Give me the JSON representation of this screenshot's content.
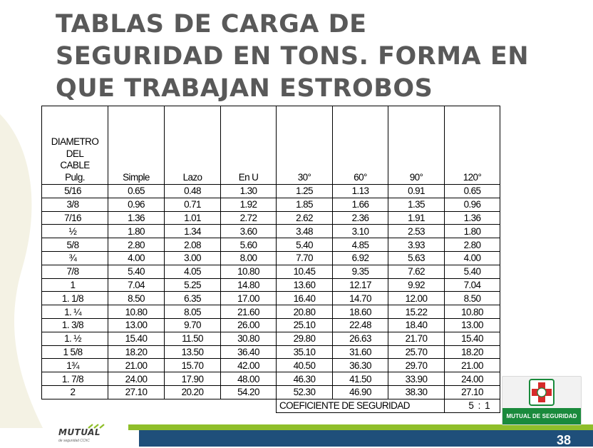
{
  "slide": {
    "title_lines": [
      "TABLAS DE CARGA DE",
      "SEGURIDAD EN TONS. FORMA EN",
      "QUE TRABAJAN ESTROBOS"
    ],
    "page_number": "38"
  },
  "table": {
    "diameter_header_lines": [
      "DIAMETRO",
      "DEL",
      "CABLE",
      "Pulg."
    ],
    "headers": [
      "Simple",
      "Lazo",
      "En U",
      "30°",
      "60°",
      "90°",
      "120°"
    ],
    "rows": [
      [
        "5/16",
        "0.65",
        "0.48",
        "1.30",
        "1.25",
        "1.13",
        "0.91",
        "0.65"
      ],
      [
        "3/8",
        "0.96",
        "0.71",
        "1.92",
        "1.85",
        "1.66",
        "1.35",
        "0.96"
      ],
      [
        "7/16",
        "1.36",
        "1.01",
        "2.72",
        "2.62",
        "2.36",
        "1.91",
        "1.36"
      ],
      [
        "½",
        "1.80",
        "1.34",
        "3.60",
        "3.48",
        "3.10",
        "2.53",
        "1.80"
      ],
      [
        "5/8",
        "2.80",
        "2.08",
        "5.60",
        "5.40",
        "4.85",
        "3.93",
        "2.80"
      ],
      [
        "¾",
        "4.00",
        "3.00",
        "8.00",
        "7.70",
        "6.92",
        "5.63",
        "4.00"
      ],
      [
        "7/8",
        "5.40",
        "4.05",
        "10.80",
        "10.45",
        "9.35",
        "7.62",
        "5.40"
      ],
      [
        "1",
        "7.04",
        "5.25",
        "14.80",
        "13.60",
        "12.17",
        "9.92",
        "7.04"
      ],
      [
        "1. 1/8",
        "8.50",
        "6.35",
        "17.00",
        "16.40",
        "14.70",
        "12.00",
        "8.50"
      ],
      [
        "1. ¼",
        "10.80",
        "8.05",
        "21.60",
        "20.80",
        "18.60",
        "15.22",
        "10.80"
      ],
      [
        "1. 3/8",
        "13.00",
        "9.70",
        "26.00",
        "25.10",
        "22.48",
        "18.40",
        "13.00"
      ],
      [
        "1. ½",
        "15.40",
        "11.50",
        "30.80",
        "29.80",
        "26.63",
        "21.70",
        "15.40"
      ],
      [
        "1 5/8",
        "18.20",
        "13.50",
        "36.40",
        "35.10",
        "31.60",
        "25.70",
        "18.20"
      ],
      [
        "1¾",
        "21.00",
        "15.70",
        "42.00",
        "40.50",
        "36.30",
        "29.70",
        "21.00"
      ],
      [
        "1. 7/8",
        "24.00",
        "17.90",
        "48.00",
        "46.30",
        "41.50",
        "33.90",
        "24.00"
      ],
      [
        "2",
        "27.10",
        "20.20",
        "54.20",
        "52.30",
        "46.90",
        "38.30",
        "27.10"
      ]
    ],
    "coefficient_label": "COEFICIENTE DE SEGURIDAD",
    "coefficient_value": "5  :  1"
  },
  "logos": {
    "mutual_badge": "MUTUAL DE SEGURIDAD",
    "brand_name": "MUTUAL",
    "brand_tagline": "de seguridad CChC",
    "colors": {
      "green": "#1a8a3c",
      "red": "#d62a2a",
      "lime": "#8fbe2a",
      "navy": "#1f4f7a"
    }
  }
}
